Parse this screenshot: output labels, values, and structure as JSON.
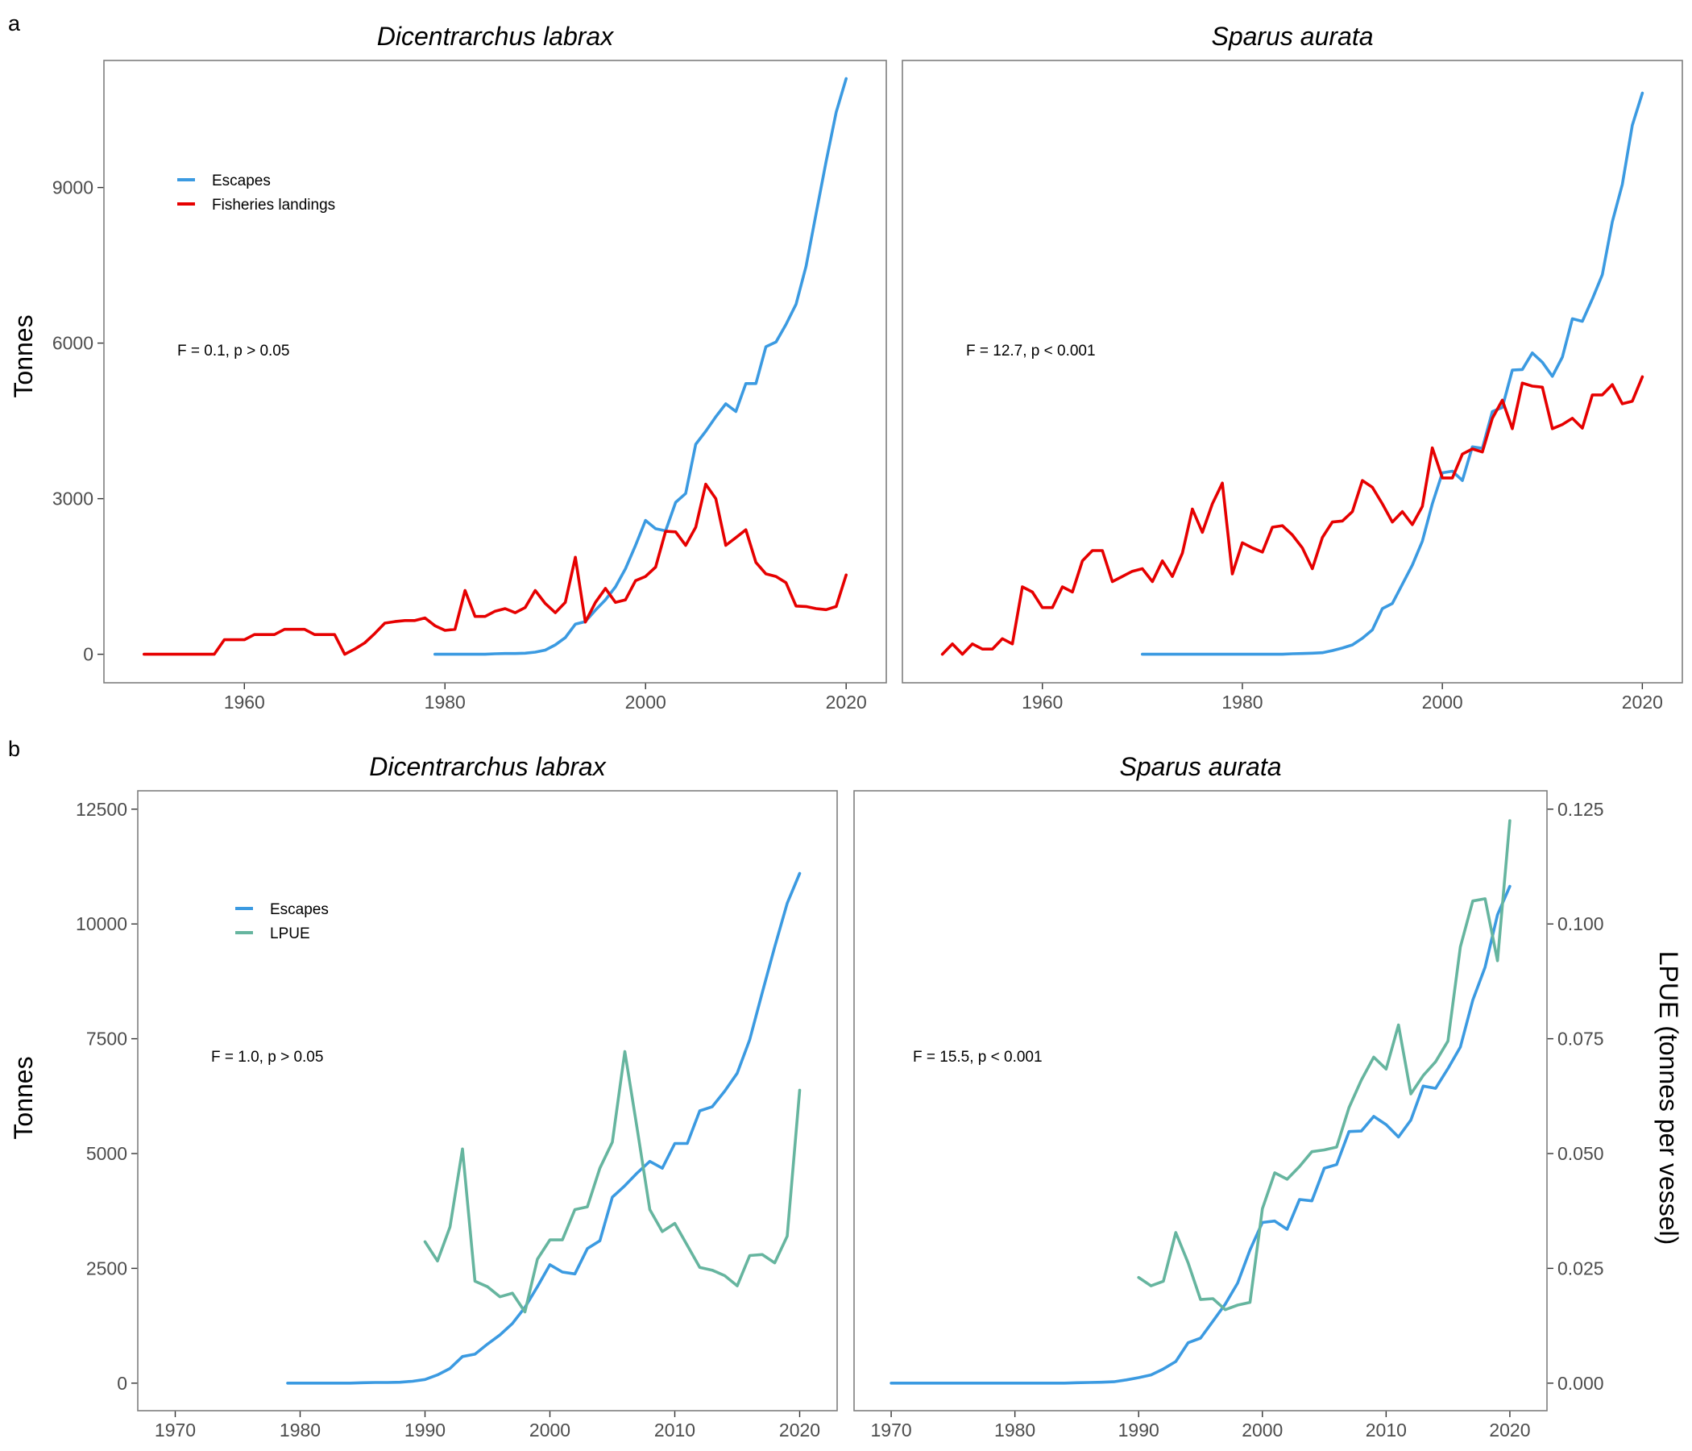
{
  "panel_letters": {
    "top": "a",
    "bottom": "b"
  },
  "colors": {
    "escapes": "#3b9ae1",
    "landings": "#e60000",
    "lpue": "#66b59f"
  },
  "chart_data": [
    {
      "id": "a-labrax",
      "type": "line",
      "title": "Dicentrarchus labrax",
      "ylabel": "Tonnes",
      "xlim": [
        1946,
        2024
      ],
      "ylim": [
        -550,
        11450
      ],
      "xticks": [
        1960,
        1980,
        2000,
        2020
      ],
      "yticks": [
        0,
        3000,
        6000,
        9000
      ],
      "annotation": "F = 0.1, p > 0.05",
      "legend": [
        "Escapes",
        "Fisheries landings"
      ],
      "legend_position": "top-left",
      "series": [
        {
          "name": "Escapes",
          "color_key": "escapes",
          "x": [
            1979,
            1980,
            1981,
            1982,
            1983,
            1984,
            1985,
            1986,
            1987,
            1988,
            1989,
            1990,
            1991,
            1992,
            1993,
            1994,
            1995,
            1996,
            1997,
            1998,
            1999,
            2000,
            2001,
            2002,
            2003,
            2004,
            2005,
            2006,
            2007,
            2008,
            2009,
            2010,
            2011,
            2012,
            2013,
            2014,
            2015,
            2016,
            2017,
            2018,
            2019,
            2020
          ],
          "y": [
            0,
            0,
            0,
            0,
            0,
            0,
            10,
            15,
            15,
            20,
            40,
            80,
            180,
            320,
            580,
            630,
            850,
            1050,
            1300,
            1650,
            2100,
            2580,
            2420,
            2380,
            2930,
            3100,
            4050,
            4300,
            4580,
            4830,
            4680,
            5220,
            5220,
            5930,
            6020,
            6360,
            6750,
            7480,
            8500,
            9500,
            10450,
            11100
          ]
        },
        {
          "name": "Fisheries landings",
          "color_key": "landings",
          "x": [
            1950,
            1951,
            1952,
            1953,
            1954,
            1955,
            1956,
            1957,
            1958,
            1959,
            1960,
            1961,
            1962,
            1963,
            1964,
            1965,
            1966,
            1967,
            1968,
            1969,
            1970,
            1971,
            1972,
            1973,
            1974,
            1975,
            1976,
            1977,
            1978,
            1979,
            1980,
            1981,
            1982,
            1983,
            1984,
            1985,
            1986,
            1987,
            1988,
            1989,
            1990,
            1991,
            1992,
            1993,
            1994,
            1995,
            1996,
            1997,
            1998,
            1999,
            2000,
            2001,
            2002,
            2003,
            2004,
            2005,
            2006,
            2007,
            2008,
            2009,
            2010,
            2011,
            2012,
            2013,
            2014,
            2015,
            2016,
            2017,
            2018,
            2019,
            2020
          ],
          "y": [
            0,
            0,
            0,
            0,
            0,
            0,
            0,
            0,
            280,
            280,
            280,
            380,
            380,
            380,
            480,
            480,
            480,
            380,
            380,
            380,
            0,
            100,
            220,
            400,
            600,
            630,
            650,
            650,
            700,
            550,
            460,
            480,
            1230,
            730,
            730,
            830,
            880,
            800,
            900,
            1230,
            980,
            800,
            1000,
            1870,
            620,
            1000,
            1270,
            1000,
            1050,
            1420,
            1500,
            1680,
            2370,
            2360,
            2100,
            2450,
            3280,
            3000,
            2100,
            2250,
            2400,
            1770,
            1550,
            1500,
            1380,
            930,
            920,
            880,
            860,
            920,
            1530
          ]
        }
      ]
    },
    {
      "id": "a-aurata",
      "type": "line",
      "title": "Sparus aurata",
      "xlim": [
        1946,
        2024
      ],
      "ylim": [
        -550,
        11450
      ],
      "xticks": [
        1960,
        1980,
        2000,
        2020
      ],
      "annotation": "F = 12.7, p < 0.001",
      "series": [
        {
          "name": "Escapes",
          "color_key": "escapes",
          "x": [
            1970,
            1972,
            1974,
            1976,
            1978,
            1980,
            1982,
            1984,
            1985,
            1986,
            1987,
            1988,
            1989,
            1990,
            1991,
            1992,
            1993,
            1994,
            1995,
            1996,
            1997,
            1998,
            1999,
            2000,
            2001,
            2002,
            2003,
            2004,
            2005,
            2006,
            2007,
            2008,
            2009,
            2010,
            2011,
            2012,
            2013,
            2014,
            2015,
            2016,
            2017,
            2018,
            2019,
            2020
          ],
          "y": [
            0,
            0,
            0,
            0,
            0,
            0,
            0,
            0,
            10,
            15,
            20,
            30,
            70,
            120,
            180,
            310,
            470,
            880,
            980,
            1350,
            1720,
            2180,
            2900,
            3500,
            3530,
            3350,
            4000,
            3970,
            4680,
            4760,
            5480,
            5490,
            5810,
            5630,
            5360,
            5730,
            6470,
            6420,
            6850,
            7320,
            8340,
            9060,
            10200,
            10820
          ]
        },
        {
          "name": "Fisheries landings",
          "color_key": "landings",
          "x": [
            1950,
            1951,
            1952,
            1953,
            1954,
            1955,
            1956,
            1957,
            1958,
            1959,
            1960,
            1961,
            1962,
            1963,
            1964,
            1965,
            1966,
            1967,
            1968,
            1969,
            1970,
            1971,
            1972,
            1973,
            1974,
            1975,
            1976,
            1977,
            1978,
            1979,
            1980,
            1981,
            1982,
            1983,
            1984,
            1985,
            1986,
            1987,
            1988,
            1989,
            1990,
            1991,
            1992,
            1993,
            1994,
            1995,
            1996,
            1997,
            1998,
            1999,
            2000,
            2001,
            2002,
            2003,
            2004,
            2005,
            2006,
            2007,
            2008,
            2009,
            2010,
            2011,
            2012,
            2013,
            2014,
            2015,
            2016,
            2017,
            2018,
            2019,
            2020
          ],
          "y": [
            0,
            200,
            0,
            200,
            100,
            100,
            300,
            200,
            1300,
            1200,
            900,
            900,
            1300,
            1200,
            1800,
            2000,
            2000,
            1400,
            1500,
            1600,
            1650,
            1400,
            1800,
            1500,
            1950,
            2800,
            2350,
            2900,
            3300,
            1550,
            2150,
            2050,
            1970,
            2450,
            2480,
            2300,
            2050,
            1650,
            2250,
            2550,
            2570,
            2750,
            3350,
            3220,
            2900,
            2550,
            2750,
            2500,
            2850,
            3980,
            3400,
            3400,
            3860,
            3960,
            3900,
            4550,
            4900,
            4350,
            5230,
            5170,
            5150,
            4350,
            4430,
            4550,
            4360,
            5000,
            5000,
            5200,
            4830,
            4880,
            5350
          ]
        }
      ]
    },
    {
      "id": "b-labrax",
      "type": "line",
      "title": "Dicentrarchus labrax",
      "ylabel": "Tonnes",
      "xlim": [
        1967,
        2023
      ],
      "ylim": [
        -600,
        12900
      ],
      "xticks": [
        1970,
        1980,
        1990,
        2000,
        2010,
        2020
      ],
      "yticks": [
        0,
        2500,
        5000,
        7500,
        10000,
        12500
      ],
      "annotation": "F = 1.0, p > 0.05",
      "legend": [
        "Escapes",
        "LPUE"
      ],
      "legend_position": "top-left",
      "series": [
        {
          "name": "Escapes",
          "color_key": "escapes",
          "axis": "left",
          "x": [
            1979,
            1980,
            1981,
            1982,
            1983,
            1984,
            1985,
            1986,
            1987,
            1988,
            1989,
            1990,
            1991,
            1992,
            1993,
            1994,
            1995,
            1996,
            1997,
            1998,
            1999,
            2000,
            2001,
            2002,
            2003,
            2004,
            2005,
            2006,
            2007,
            2008,
            2009,
            2010,
            2011,
            2012,
            2013,
            2014,
            2015,
            2016,
            2017,
            2018,
            2019,
            2020
          ],
          "y": [
            0,
            0,
            0,
            0,
            0,
            0,
            10,
            15,
            15,
            20,
            40,
            80,
            180,
            320,
            580,
            630,
            850,
            1050,
            1300,
            1650,
            2100,
            2580,
            2420,
            2380,
            2930,
            3100,
            4050,
            4300,
            4580,
            4830,
            4680,
            5220,
            5220,
            5930,
            6020,
            6360,
            6750,
            7480,
            8500,
            9500,
            10450,
            11100
          ]
        },
        {
          "name": "LPUE",
          "color_key": "lpue",
          "axis": "right",
          "x": [
            1990,
            1991,
            1992,
            1993,
            1994,
            1995,
            1996,
            1997,
            1998,
            1999,
            2000,
            2001,
            2002,
            2003,
            2004,
            2005,
            2006,
            2007,
            2008,
            2009,
            2010,
            2011,
            2012,
            2013,
            2014,
            2015,
            2016,
            2017,
            2018,
            2019,
            2020
          ],
          "y": [
            0.0308,
            0.0266,
            0.034,
            0.051,
            0.0222,
            0.021,
            0.0188,
            0.0196,
            0.0155,
            0.027,
            0.0312,
            0.0312,
            0.0378,
            0.0384,
            0.0468,
            0.0525,
            0.0722,
            0.0552,
            0.0378,
            0.033,
            0.0348,
            0.03,
            0.0252,
            0.0246,
            0.0234,
            0.0212,
            0.0278,
            0.028,
            0.0262,
            0.032,
            0.0638
          ]
        }
      ]
    },
    {
      "id": "b-aurata",
      "type": "line",
      "title": "Sparus aurata",
      "ylabel_right": "LPUE (tonnes per vessel)",
      "xlim": [
        1967,
        2023
      ],
      "ylim_right": [
        -0.006,
        0.129
      ],
      "xticks": [
        1970,
        1980,
        1990,
        2000,
        2010,
        2020
      ],
      "yticks_right": [
        "0.000",
        "0.025",
        "0.050",
        "0.075",
        "0.100",
        "0.125"
      ],
      "annotation": "F = 15.5, p < 0.001",
      "series": [
        {
          "name": "Escapes",
          "color_key": "escapes",
          "axis": "left",
          "x": [
            1970,
            1972,
            1974,
            1976,
            1978,
            1980,
            1982,
            1984,
            1985,
            1986,
            1987,
            1988,
            1989,
            1990,
            1991,
            1992,
            1993,
            1994,
            1995,
            1996,
            1997,
            1998,
            1999,
            2000,
            2001,
            2002,
            2003,
            2004,
            2005,
            2006,
            2007,
            2008,
            2009,
            2010,
            2011,
            2012,
            2013,
            2014,
            2015,
            2016,
            2017,
            2018,
            2019,
            2020
          ],
          "y": [
            0,
            0,
            0,
            0,
            0,
            0,
            0,
            0,
            10,
            15,
            20,
            30,
            70,
            120,
            180,
            310,
            470,
            880,
            980,
            1350,
            1720,
            2180,
            2900,
            3500,
            3530,
            3350,
            4000,
            3970,
            4680,
            4760,
            5480,
            5490,
            5810,
            5630,
            5360,
            5730,
            6470,
            6420,
            6850,
            7320,
            8340,
            9060,
            10200,
            10820
          ]
        },
        {
          "name": "LPUE",
          "color_key": "lpue",
          "axis": "right",
          "x": [
            1990,
            1991,
            1992,
            1993,
            1994,
            1995,
            1996,
            1997,
            1998,
            1999,
            2000,
            2001,
            2002,
            2003,
            2004,
            2005,
            2006,
            2007,
            2008,
            2009,
            2010,
            2011,
            2012,
            2013,
            2014,
            2015,
            2016,
            2017,
            2018,
            2019,
            2020
          ],
          "y": [
            0.023,
            0.0212,
            0.0222,
            0.0328,
            0.0262,
            0.0182,
            0.0184,
            0.016,
            0.017,
            0.0176,
            0.038,
            0.0458,
            0.0444,
            0.0472,
            0.0504,
            0.0508,
            0.0514,
            0.06,
            0.066,
            0.071,
            0.0684,
            0.078,
            0.063,
            0.067,
            0.07,
            0.0745,
            0.095,
            0.105,
            0.1055,
            0.092,
            0.1225
          ]
        }
      ]
    }
  ]
}
